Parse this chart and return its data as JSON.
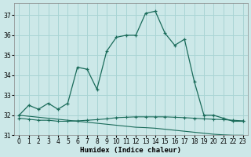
{
  "xlabel": "Humidex (Indice chaleur)",
  "bg_color": "#cce8e8",
  "line_color": "#1a6b5a",
  "grid_color": "#a8d4d4",
  "xlim": [
    -0.5,
    23.5
  ],
  "ylim": [
    31.0,
    37.6
  ],
  "yticks": [
    31,
    32,
    33,
    34,
    35,
    36,
    37
  ],
  "xticks": [
    0,
    1,
    2,
    3,
    4,
    5,
    6,
    7,
    8,
    9,
    10,
    11,
    12,
    13,
    14,
    15,
    16,
    17,
    18,
    19,
    20,
    21,
    22,
    23
  ],
  "humidex_x": [
    0,
    1,
    2,
    3,
    4,
    5,
    6,
    7,
    8,
    9,
    10,
    11,
    12,
    13,
    14,
    15,
    16,
    17,
    18,
    19,
    20,
    21,
    22,
    23
  ],
  "humidex_y": [
    32.0,
    32.5,
    32.3,
    32.6,
    32.3,
    32.6,
    34.4,
    34.3,
    33.3,
    35.2,
    35.9,
    36.0,
    36.0,
    37.1,
    37.2,
    36.1,
    35.5,
    35.8,
    33.7,
    32.0,
    32.0,
    31.85,
    31.7,
    31.7
  ],
  "flat_x": [
    0,
    1,
    2,
    3,
    4,
    5,
    6,
    7,
    8,
    9,
    10,
    11,
    12,
    13,
    14,
    15,
    16,
    17,
    18,
    19,
    20,
    21,
    22,
    23
  ],
  "flat_y": [
    31.85,
    31.8,
    31.75,
    31.75,
    31.7,
    31.7,
    31.72,
    31.75,
    31.78,
    31.82,
    31.88,
    31.9,
    31.92,
    31.92,
    31.92,
    31.92,
    31.9,
    31.88,
    31.85,
    31.82,
    31.8,
    31.78,
    31.75,
    31.72
  ],
  "decline_x": [
    0,
    1,
    2,
    3,
    4,
    5,
    6,
    7,
    8,
    9,
    10,
    11,
    12,
    13,
    14,
    15,
    16,
    17,
    18,
    19,
    20,
    21,
    22,
    23
  ],
  "decline_y": [
    32.0,
    31.95,
    31.9,
    31.85,
    31.8,
    31.75,
    31.7,
    31.65,
    31.6,
    31.55,
    31.5,
    31.45,
    31.4,
    31.38,
    31.35,
    31.3,
    31.25,
    31.2,
    31.15,
    31.1,
    31.05,
    31.02,
    31.0,
    31.0
  ]
}
